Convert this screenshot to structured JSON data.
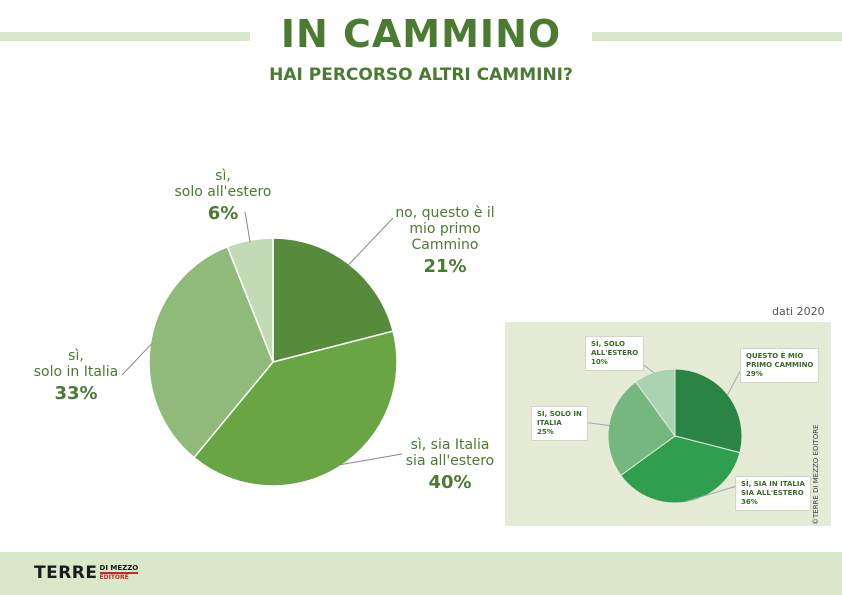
{
  "header": {
    "title": "IN CAMMINO",
    "subtitle": "HAI PERCORSO ALTRI CAMMINI?"
  },
  "chart_data": [
    {
      "type": "pie",
      "title": "HAI PERCORSO ALTRI CAMMINI?",
      "slices": [
        {
          "label_lines": [
            "no, questo è il",
            "mio primo",
            "Cammino"
          ],
          "value": 21,
          "value_label": "21%",
          "color": "#558b3a"
        },
        {
          "label_lines": [
            "sì, sia Italia",
            "sia all'estero"
          ],
          "value": 40,
          "value_label": "40%",
          "color": "#6aa544"
        },
        {
          "label_lines": [
            "sì,",
            "solo in Italia"
          ],
          "value": 33,
          "value_label": "33%",
          "color": "#8fba7a"
        },
        {
          "label_lines": [
            "sì,",
            "solo all'estero"
          ],
          "value": 6,
          "value_label": "6%",
          "color": "#c3dbb5"
        }
      ]
    },
    {
      "type": "pie",
      "note": "dati 2020",
      "slices": [
        {
          "label_lines": [
            "QUESTO È MIO",
            "PRIMO CAMMINO"
          ],
          "value": 29,
          "value_label": "29%",
          "color": "#2a8444"
        },
        {
          "label_lines": [
            "SÌ, SIA IN ITALIA",
            "SIA ALL'ESTERO"
          ],
          "value": 36,
          "value_label": "36%",
          "color": "#2f9e4e"
        },
        {
          "label_lines": [
            "SÌ, SOLO IN",
            "ITALIA"
          ],
          "value": 25,
          "value_label": "25%",
          "color": "#74b880"
        },
        {
          "label_lines": [
            "SÌ, SOLO",
            "ALL'ESTERO"
          ],
          "value": 10,
          "value_label": "10%",
          "color": "#aad3b2"
        }
      ]
    }
  ],
  "inset": {
    "copyright": "©TERRE DI MEZZO EDITORE"
  },
  "footer": {
    "logo_main": "TERRE",
    "logo_top": "DI MEZZO",
    "logo_bottom": "EDITORE",
    "accent_color": "#c8282d"
  }
}
